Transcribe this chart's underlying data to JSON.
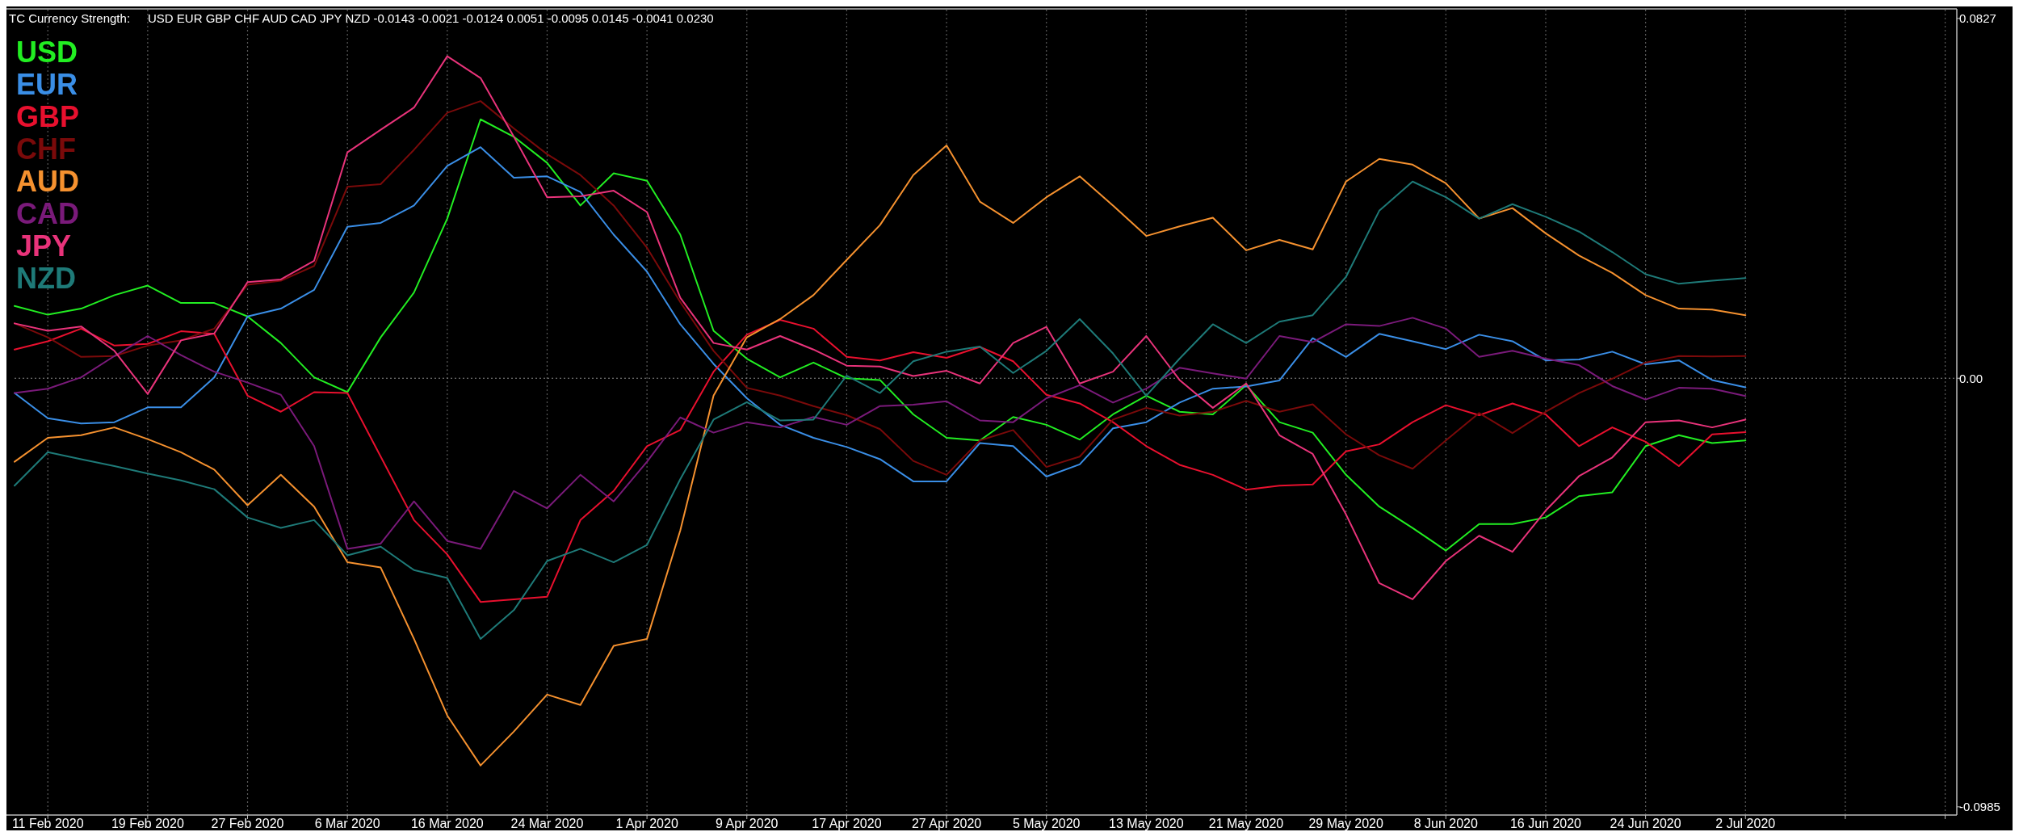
{
  "chart_data": {
    "type": "line",
    "title": "TC Currency Strength:",
    "subtitle": "USD EUR GBP CHF AUD CAD JPY NZD -0.0143 -0.0021 -0.0124 0.0051 -0.0095 0.0145 -0.0041 0.0230",
    "categories": [
      null,
      "11 Feb 2020",
      null,
      null,
      "19 Feb 2020",
      null,
      null,
      "27 Feb 2020",
      null,
      null,
      "6 Mar 2020",
      null,
      null,
      "16 Mar 2020",
      null,
      null,
      "24 Mar 2020",
      null,
      null,
      "1 Apr 2020",
      null,
      null,
      "9 Apr 2020",
      null,
      null,
      "17 Apr 2020",
      null,
      null,
      "27 Apr 2020",
      null,
      null,
      "5 May 2020",
      null,
      null,
      "13 May 2020",
      null,
      null,
      "21 May 2020",
      null,
      null,
      "29 May 2020",
      null,
      null,
      "8 Jun 2020",
      null,
      null,
      "16 Jun 2020",
      null,
      null,
      "24 Jun 2020",
      null,
      null,
      "2 Jul 2020",
      null,
      null,
      null,
      null,
      null,
      null
    ],
    "ylim": [
      -0.1002,
      0.0847
    ],
    "yticks": [
      0.0827,
      {
        "value": 0,
        "label": "0.00"
      },
      -0.0985
    ],
    "grid": "x",
    "legend": "top left",
    "ref_lines": [
      {
        "axis": "y",
        "value": 0,
        "label": null,
        "color": "#8a8a8a",
        "line_style": "dotted"
      }
    ],
    "series": [
      {
        "name": "USD",
        "color": "#22ee22",
        "values": [
          0.0166,
          0.0146,
          0.016,
          0.0191,
          0.0213,
          0.0173,
          0.0173,
          0.0142,
          0.0081,
          0.0002,
          -0.0032,
          0.0094,
          0.0197,
          0.0367,
          0.0595,
          0.0555,
          0.0495,
          0.0397,
          0.0471,
          0.0454,
          0.033,
          0.0109,
          0.0045,
          0.0002,
          0.0036,
          0.0,
          -0.0004,
          -0.0083,
          -0.0137,
          -0.0143,
          -0.0089,
          -0.0107,
          -0.0141,
          -0.0083,
          -0.004,
          -0.0077,
          -0.0083,
          -0.0016,
          -0.0101,
          -0.0125,
          -0.0222,
          -0.0295,
          -0.0344,
          -0.0396,
          -0.0335,
          -0.0335,
          -0.032,
          -0.0271,
          -0.0262,
          -0.0156,
          -0.0131,
          -0.0149,
          -0.0143,
          null,
          null,
          null,
          null,
          null,
          null
        ]
      },
      {
        "name": "EUR",
        "color": "#3a8ee6",
        "values": [
          -0.0034,
          -0.0092,
          -0.0104,
          -0.0101,
          -0.0067,
          -0.0067,
          0.0002,
          0.0142,
          0.016,
          0.0203,
          0.0348,
          0.0357,
          0.0397,
          0.0488,
          0.0531,
          0.0461,
          0.0464,
          0.0428,
          0.033,
          0.0245,
          0.0124,
          0.0033,
          -0.0046,
          -0.0107,
          -0.0137,
          -0.0158,
          -0.0186,
          -0.0237,
          -0.0237,
          -0.0149,
          -0.0156,
          -0.0226,
          -0.0198,
          -0.0115,
          -0.0101,
          -0.0056,
          -0.0024,
          -0.0019,
          -0.0005,
          0.0092,
          0.0049,
          0.0102,
          0.0085,
          0.0067,
          0.01,
          0.0085,
          0.0041,
          0.0043,
          0.0061,
          0.0032,
          0.0041,
          -0.0004,
          -0.0021,
          null,
          null,
          null,
          null,
          null,
          null
        ]
      },
      {
        "name": "GBP",
        "color": "#e8102e",
        "values": [
          0.0066,
          0.0085,
          0.0114,
          0.0075,
          0.0079,
          0.0108,
          0.0102,
          -0.004,
          -0.0077,
          -0.0032,
          -0.0034,
          -0.018,
          -0.0326,
          -0.0405,
          -0.0514,
          -0.0508,
          -0.0502,
          -0.0326,
          -0.0259,
          -0.0156,
          -0.0119,
          0.0015,
          0.01,
          0.0134,
          0.0114,
          0.0049,
          0.0041,
          0.006,
          0.0047,
          0.0072,
          0.0039,
          -0.0038,
          -0.0058,
          -0.0101,
          -0.0156,
          -0.0199,
          -0.0222,
          -0.0256,
          -0.0247,
          -0.0244,
          -0.0168,
          -0.0152,
          -0.0101,
          -0.0062,
          -0.0085,
          -0.0058,
          -0.0083,
          -0.0156,
          -0.0113,
          -0.0146,
          -0.0202,
          -0.0129,
          -0.0124,
          null,
          null,
          null,
          null,
          null,
          null
        ]
      },
      {
        "name": "CHF",
        "color": "#7a0a0a",
        "values": [
          0.0126,
          0.0094,
          0.0049,
          0.0051,
          0.0075,
          0.0087,
          0.0114,
          0.0215,
          0.0224,
          0.0258,
          0.044,
          0.0446,
          0.0525,
          0.061,
          0.0637,
          0.0574,
          0.0515,
          0.0467,
          0.0397,
          0.03,
          0.0175,
          0.0063,
          -0.0022,
          -0.004,
          -0.0064,
          -0.0085,
          -0.0117,
          -0.019,
          -0.0222,
          -0.0143,
          -0.0119,
          -0.0204,
          -0.018,
          -0.0095,
          -0.0068,
          -0.0086,
          -0.0077,
          -0.0052,
          -0.0077,
          -0.006,
          -0.0129,
          -0.0177,
          -0.0208,
          -0.0143,
          -0.008,
          -0.0126,
          -0.0077,
          -0.0034,
          -0.0001,
          0.0036,
          0.0051,
          0.005,
          0.0051,
          null,
          null,
          null,
          null,
          null,
          null
        ]
      },
      {
        "name": "AUD",
        "color": "#f5912f",
        "values": [
          -0.0192,
          -0.0137,
          -0.0131,
          -0.0113,
          -0.014,
          -0.017,
          -0.021,
          -0.0292,
          -0.0222,
          -0.0295,
          -0.0423,
          -0.0435,
          -0.0599,
          -0.0775,
          -0.089,
          -0.0812,
          -0.0727,
          -0.0751,
          -0.0615,
          -0.0599,
          -0.035,
          -0.004,
          0.0094,
          0.0136,
          0.0191,
          0.0272,
          0.0352,
          0.0467,
          0.0535,
          0.0406,
          0.0357,
          0.0416,
          0.0464,
          0.0397,
          0.0327,
          0.0349,
          0.0369,
          0.0294,
          0.0318,
          0.0296,
          0.0452,
          0.0504,
          0.0491,
          0.0448,
          0.0367,
          0.0391,
          0.0333,
          0.0282,
          0.0242,
          0.0191,
          0.016,
          0.0158,
          0.0145,
          null,
          null,
          null,
          null,
          null,
          null
        ]
      },
      {
        "name": "CAD",
        "color": "#7a1a7a",
        "values": [
          -0.0034,
          -0.0024,
          0.0002,
          0.0051,
          0.0097,
          0.0053,
          0.0015,
          -0.001,
          -0.0038,
          -0.0156,
          -0.0392,
          -0.038,
          -0.0283,
          -0.0374,
          -0.0392,
          -0.0259,
          -0.0299,
          -0.0222,
          -0.0283,
          -0.0192,
          -0.009,
          -0.0125,
          -0.0101,
          -0.0113,
          -0.0089,
          -0.0107,
          -0.0064,
          -0.0061,
          -0.0053,
          -0.0097,
          -0.0101,
          -0.0046,
          -0.0016,
          -0.0056,
          -0.0024,
          0.0024,
          0.0011,
          -0.0001,
          0.0097,
          0.0083,
          0.0124,
          0.012,
          0.0139,
          0.0114,
          0.0049,
          0.0063,
          0.0045,
          0.003,
          -0.0018,
          -0.0049,
          -0.0022,
          -0.0024,
          -0.0041,
          null,
          null,
          null,
          null,
          null,
          null
        ]
      },
      {
        "name": "JPY",
        "color": "#e8337a",
        "values": [
          0.0126,
          0.0109,
          0.0119,
          0.0063,
          -0.0036,
          0.0087,
          0.0103,
          0.0221,
          0.0227,
          0.027,
          0.0519,
          0.0571,
          0.0622,
          0.074,
          0.069,
          0.0555,
          0.0416,
          0.0418,
          0.0431,
          0.0382,
          0.0185,
          0.0081,
          0.0066,
          0.0097,
          0.0066,
          0.0029,
          0.0027,
          0.0005,
          0.0017,
          -0.0012,
          0.0081,
          0.0118,
          -0.0012,
          0.0015,
          0.0097,
          -0.0004,
          -0.0068,
          -0.0012,
          -0.0131,
          -0.0174,
          -0.0313,
          -0.0471,
          -0.0508,
          -0.042,
          -0.0362,
          -0.0399,
          -0.0304,
          -0.0225,
          -0.0182,
          -0.0101,
          -0.0097,
          -0.0113,
          -0.0095,
          null,
          null,
          null,
          null,
          null,
          null
        ]
      },
      {
        "name": "NZD",
        "color": "#1e7a78",
        "values": [
          -0.0247,
          -0.017,
          -0.0186,
          -0.0202,
          -0.0219,
          -0.0235,
          -0.0255,
          -0.032,
          -0.0344,
          -0.0326,
          -0.0407,
          -0.0387,
          -0.0441,
          -0.0459,
          -0.0599,
          -0.0533,
          -0.042,
          -0.0392,
          -0.0423,
          -0.0383,
          -0.0232,
          -0.0095,
          -0.0055,
          -0.0097,
          -0.0095,
          0.0006,
          -0.0034,
          0.0039,
          0.0061,
          0.0073,
          0.0012,
          0.0063,
          0.0136,
          0.0057,
          -0.004,
          0.0045,
          0.0124,
          0.0081,
          0.013,
          0.0145,
          0.0233,
          0.0385,
          0.0452,
          0.0416,
          0.0367,
          0.04,
          0.0371,
          0.0337,
          0.029,
          0.0239,
          0.0217,
          0.0224,
          0.023,
          null,
          null,
          null,
          null,
          null,
          null
        ]
      }
    ]
  }
}
